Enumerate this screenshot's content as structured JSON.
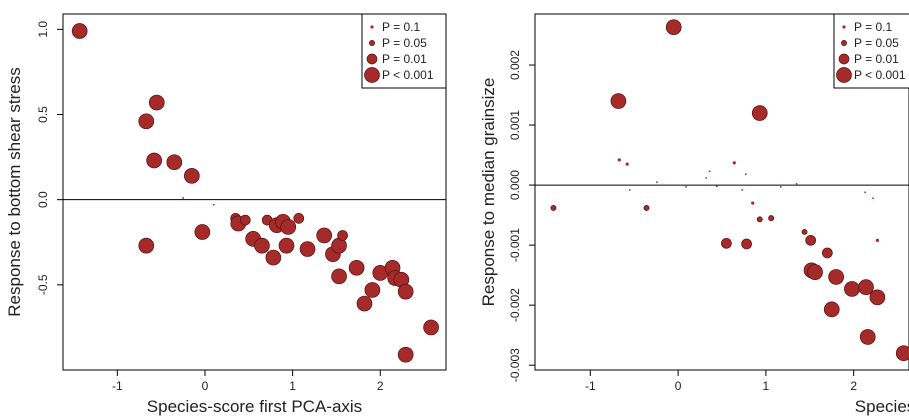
{
  "chart_data": [
    {
      "type": "scatter",
      "ylabel": "Response to bottom shear stress",
      "xlabel": "Species-score first PCA-axis",
      "color": "#a52a2a",
      "xlim": [
        -1.62,
        2.75
      ],
      "ylim": [
        -1.0,
        1.09
      ],
      "xticks": [
        -1,
        0,
        1,
        2
      ],
      "yticks": [
        {
          "value": 1.0,
          "label": "1.0"
        },
        0.5,
        {
          "value": 0,
          "label": "0.0"
        },
        -0.5
      ],
      "hline": 0,
      "legend": {
        "position": "top-right",
        "entries": [
          {
            "label": "P = 0.1",
            "p": 0.1
          },
          {
            "label": "P = 0.05",
            "p": 0.05
          },
          {
            "label": "P = 0.01",
            "p": 0.01
          },
          {
            "label": "P < 0.001",
            "p": 0.001
          }
        ]
      },
      "x": [
        -1.43,
        -0.55,
        -0.67,
        -0.58,
        -0.35,
        -0.15,
        -0.25,
        0.1,
        -0.67,
        -0.03,
        0.35,
        0.38,
        0.46,
        0.55,
        0.65,
        0.71,
        0.78,
        0.82,
        0.89,
        0.93,
        0.95,
        1.07,
        1.17,
        1.36,
        1.46,
        1.53,
        1.57,
        1.53,
        1.73,
        1.82,
        1.91,
        2.0,
        2.14,
        2.17,
        2.24,
        2.29,
        2.29,
        2.58
      ],
      "y": [
        0.99,
        0.57,
        0.46,
        0.23,
        0.22,
        0.14,
        0.01,
        -0.03,
        -0.27,
        -0.19,
        -0.11,
        -0.14,
        -0.12,
        -0.23,
        -0.27,
        -0.12,
        -0.34,
        -0.15,
        -0.13,
        -0.27,
        -0.16,
        -0.11,
        -0.29,
        -0.21,
        -0.32,
        -0.27,
        -0.21,
        -0.45,
        -0.4,
        -0.61,
        -0.53,
        -0.43,
        -0.4,
        -0.46,
        -0.47,
        -0.54,
        -0.91,
        -0.75
      ],
      "p": [
        0.001,
        0.001,
        0.001,
        0.001,
        0.001,
        0.001,
        null,
        null,
        0.001,
        0.001,
        0.01,
        0.001,
        0.01,
        0.001,
        0.001,
        0.01,
        0.001,
        0.001,
        0.001,
        0.001,
        0.001,
        0.01,
        0.001,
        0.001,
        0.001,
        0.001,
        0.01,
        0.001,
        0.001,
        0.001,
        0.001,
        0.001,
        0.001,
        0.001,
        0.001,
        0.001,
        0.001,
        0.001
      ]
    },
    {
      "type": "scatter",
      "ylabel": "Response to median grainsize",
      "xlabel": "Species-score first PCA-axis",
      "color": "#a52a2a",
      "xlim": [
        -1.63,
        2.63
      ],
      "ylim": [
        -0.00308,
        0.00285
      ],
      "xticks": [
        -1,
        0,
        1,
        2
      ],
      "yticks": [
        0.002,
        0.001,
        {
          "value": 0,
          "label": "0.000"
        },
        -0.001,
        -0.002,
        -0.003
      ],
      "hline": 0,
      "legend": {
        "position": "top-right",
        "entries": [
          {
            "label": "P = 0.1",
            "p": 0.1
          },
          {
            "label": "P = 0.05",
            "p": 0.05
          },
          {
            "label": "P = 0.01",
            "p": 0.01
          },
          {
            "label": "P < 0.001",
            "p": 0.001
          }
        ]
      },
      "x": [
        -0.05,
        -0.68,
        0.93,
        -0.67,
        -0.58,
        0.64,
        0.36,
        -1.42,
        -0.36,
        0.85,
        -0.55,
        -0.24,
        0.09,
        0.44,
        0.73,
        1.17,
        1.35,
        2.13,
        2.22,
        0.32,
        0.77,
        0.55,
        0.78,
        0.93,
        1.06,
        2.27,
        1.44,
        1.51,
        1.7,
        1.52,
        1.56,
        1.8,
        1.98,
        2.14,
        2.27,
        1.75,
        2.16,
        2.57
      ],
      "y": [
        0.00263,
        0.0014,
        0.0012,
        0.00042,
        0.00035,
        0.00037,
        0.00023,
        -0.00038,
        -0.00038,
        -0.0003,
        -8e-05,
        5e-05,
        -3e-05,
        -2e-05,
        -8e-05,
        -3e-05,
        2e-05,
        -0.00012,
        -0.00022,
        0.00012,
        0.00018,
        -0.00097,
        -0.00098,
        -0.00057,
        -0.00055,
        -0.00092,
        -0.00078,
        -0.00092,
        -0.00113,
        -0.00142,
        -0.00145,
        -0.00153,
        -0.00173,
        -0.0017,
        -0.00187,
        -0.00207,
        -0.00253,
        -0.0028
      ],
      "p": [
        0.001,
        0.001,
        0.001,
        0.1,
        0.1,
        0.1,
        null,
        0.05,
        0.05,
        0.1,
        null,
        null,
        null,
        null,
        null,
        null,
        null,
        null,
        null,
        null,
        null,
        0.01,
        0.01,
        0.05,
        0.05,
        0.1,
        0.05,
        0.01,
        0.01,
        0.001,
        0.001,
        0.001,
        0.001,
        0.001,
        0.001,
        0.001,
        0.001,
        0.001
      ]
    }
  ]
}
